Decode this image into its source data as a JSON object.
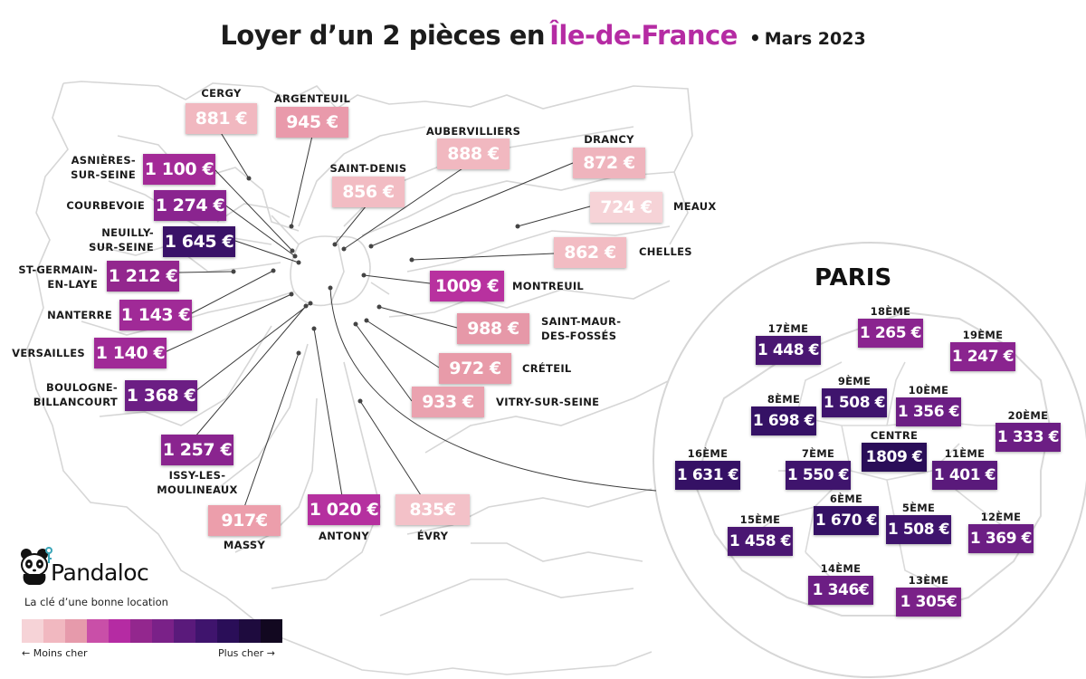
{
  "title": {
    "main": "Loyer d’un 2 pièces en",
    "accent": "Île-de-France",
    "separator": "•",
    "date": "Mars 2023"
  },
  "colors": {
    "accent": "#b52ba3",
    "map_lines": "#d4d4d4",
    "connector": "#333333"
  },
  "communes": [
    {
      "id": "cergy",
      "name": "CERGY",
      "price": "881 €",
      "color": "#f1b8c0"
    },
    {
      "id": "argenteuil",
      "name": "ARGENTEUIL",
      "price": "945 €",
      "color": "#e99aab"
    },
    {
      "id": "asnieres",
      "name": "ASNIÈRES-\nSUR-SEINE",
      "price": "1 100 €",
      "color": "#a32a97"
    },
    {
      "id": "courbevoie",
      "name": "COURBEVOIE",
      "price": "1 274 €",
      "color": "#8a248f"
    },
    {
      "id": "neuilly",
      "name": "NEUILLY-\nSUR-SEINE",
      "price": "1 645 €",
      "color": "#3a1268"
    },
    {
      "id": "st-germain",
      "name": "ST-GERMAIN-\nEN-LAYE",
      "price": "1 212 €",
      "color": "#93278e"
    },
    {
      "id": "nanterre",
      "name": "NANTERRE",
      "price": "1 143 €",
      "color": "#a02a97"
    },
    {
      "id": "versailles",
      "name": "VERSAILLES",
      "price": "1 140 €",
      "color": "#a02a97"
    },
    {
      "id": "boulogne",
      "name": "BOULOGNE-\nBILLANCOURT",
      "price": "1 368 €",
      "color": "#6c1e84"
    },
    {
      "id": "issy",
      "name": "ISSY-LES-\nMOULINEAUX",
      "price": "1 257 €",
      "color": "#8a248f"
    },
    {
      "id": "massy",
      "name": "MASSY",
      "price": "917€",
      "color": "#ec9eab"
    },
    {
      "id": "antony",
      "name": "ANTONY",
      "price": "1 020 €",
      "color": "#b5309f"
    },
    {
      "id": "evry",
      "name": "ÉVRY",
      "price": "835€",
      "color": "#f3c1c8"
    },
    {
      "id": "aubervilliers",
      "name": "AUBERVILLIERS",
      "price": "888 €",
      "color": "#f1b8c0"
    },
    {
      "id": "saint-denis",
      "name": "SAINT-DENIS",
      "price": "856 €",
      "color": "#f2bcc3"
    },
    {
      "id": "drancy",
      "name": "DRANCY",
      "price": "872 €",
      "color": "#efb4bd"
    },
    {
      "id": "meaux",
      "name": "MEAUX",
      "price": "724 €",
      "color": "#f6d3d7"
    },
    {
      "id": "chelles",
      "name": "CHELLES",
      "price": "862 €",
      "color": "#f2bcc3"
    },
    {
      "id": "montreuil",
      "name": "MONTREUIL",
      "price": "1009 €",
      "color": "#b8319f"
    },
    {
      "id": "saint-maur",
      "name": "SAINT-MAUR-\nDES-FOSSÉS",
      "price": "988 €",
      "color": "#e698a8"
    },
    {
      "id": "creteil",
      "name": "CRÉTEIL",
      "price": "972 €",
      "color": "#e89ba9"
    },
    {
      "id": "vitry",
      "name": "VITRY-SUR-SEINE",
      "price": "933 €",
      "color": "#eaa2af"
    }
  ],
  "paris": {
    "title": "PARIS",
    "arrondissements": [
      {
        "id": "17",
        "name": "17ÈME",
        "price": "1 448 €",
        "color": "#4a1672"
      },
      {
        "id": "18",
        "name": "18ÈME",
        "price": "1 265 €",
        "color": "#8a248f"
      },
      {
        "id": "19",
        "name": "19ÈME",
        "price": "1 247 €",
        "color": "#8a248f"
      },
      {
        "id": "9",
        "name": "9ÈME",
        "price": "1 508 €",
        "color": "#3f146d"
      },
      {
        "id": "8",
        "name": "8ÈME",
        "price": "1 698 €",
        "color": "#351165"
      },
      {
        "id": "10",
        "name": "10ÈME",
        "price": "1 356 €",
        "color": "#6c1e84"
      },
      {
        "id": "20",
        "name": "20ÈME",
        "price": "1 333 €",
        "color": "#6c1e84"
      },
      {
        "id": "16",
        "name": "16ÈME",
        "price": "1 631 €",
        "color": "#351165"
      },
      {
        "id": "7",
        "name": "7ÈME",
        "price": "1 550 €",
        "color": "#3f146d"
      },
      {
        "id": "centre",
        "name": "CENTRE",
        "price": "1809 €",
        "color": "#2a0e58"
      },
      {
        "id": "11",
        "name": "11ÈME",
        "price": "1 401 €",
        "color": "#5a1a7b"
      },
      {
        "id": "6",
        "name": "6ÈME",
        "price": "1 670 €",
        "color": "#351165"
      },
      {
        "id": "5",
        "name": "5ÈME",
        "price": "1 508 €",
        "color": "#3f146d"
      },
      {
        "id": "15",
        "name": "15ÈME",
        "price": "1 458 €",
        "color": "#4a1672"
      },
      {
        "id": "12",
        "name": "12ÈME",
        "price": "1 369 €",
        "color": "#6c1e84"
      },
      {
        "id": "14",
        "name": "14ÈME",
        "price": "1 346€",
        "color": "#6c1e84"
      },
      {
        "id": "13",
        "name": "13ÈME",
        "price": "1 305€",
        "color": "#7a2188"
      }
    ]
  },
  "brand": {
    "name": "Pandaloc",
    "tagline": "La clé d’une bonne location"
  },
  "legend": {
    "min_label": "← Moins cher",
    "max_label": "Plus cher →",
    "colors": [
      "#f6d3d7",
      "#f1b8c0",
      "#e69aab",
      "#c94fa8",
      "#b52ba3",
      "#93278e",
      "#7a2188",
      "#5a1a7b",
      "#3f146d",
      "#2a0e58",
      "#1e0b3e",
      "#120820"
    ]
  }
}
